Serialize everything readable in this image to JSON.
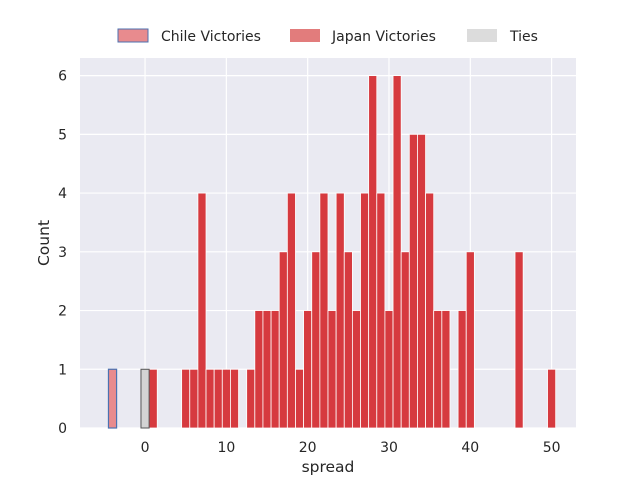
{
  "chart_data": {
    "type": "histogram",
    "xlabel": "spread",
    "ylabel": "Count",
    "xlim": [
      -8,
      53
    ],
    "ylim": [
      0,
      6.3
    ],
    "xticks": [
      0,
      10,
      20,
      30,
      40,
      50
    ],
    "yticks": [
      0,
      1,
      2,
      3,
      4,
      5,
      6
    ],
    "grid": true,
    "bin_width": 1,
    "legend": {
      "placement": "top-center-outside",
      "entries": [
        "Chile Victories",
        "Japan Victories",
        "Ties"
      ]
    },
    "colors": {
      "background": "#eaeaf2",
      "grid": "#ffffff",
      "chile": "#e88b8e",
      "chile_edge": "#4c72b0",
      "japan": "#d63a3f",
      "japan_legend": "#e27c7c",
      "ties": "#d3d3d3",
      "ties_edge": "#555555"
    },
    "series": [
      {
        "name": "Chile Victories",
        "bins": [
          [
            -4,
            1
          ]
        ]
      },
      {
        "name": "Japan Victories",
        "bins": [
          [
            1,
            1
          ],
          [
            5,
            1
          ],
          [
            6,
            1
          ],
          [
            7,
            4
          ],
          [
            8,
            1
          ],
          [
            9,
            1
          ],
          [
            10,
            1
          ],
          [
            11,
            1
          ],
          [
            13,
            1
          ],
          [
            14,
            2
          ],
          [
            15,
            2
          ],
          [
            16,
            2
          ],
          [
            17,
            3
          ],
          [
            18,
            4
          ],
          [
            19,
            1
          ],
          [
            20,
            2
          ],
          [
            21,
            3
          ],
          [
            22,
            4
          ],
          [
            23,
            2
          ],
          [
            24,
            4
          ],
          [
            25,
            3
          ],
          [
            26,
            2
          ],
          [
            27,
            4
          ],
          [
            28,
            6
          ],
          [
            29,
            4
          ],
          [
            30,
            2
          ],
          [
            31,
            6
          ],
          [
            32,
            3
          ],
          [
            33,
            5
          ],
          [
            34,
            5
          ],
          [
            35,
            4
          ],
          [
            36,
            2
          ],
          [
            37,
            2
          ],
          [
            39,
            2
          ],
          [
            40,
            3
          ],
          [
            46,
            3
          ],
          [
            50,
            1
          ]
        ]
      },
      {
        "name": "Ties",
        "bins": [
          [
            0,
            1
          ]
        ]
      }
    ]
  }
}
